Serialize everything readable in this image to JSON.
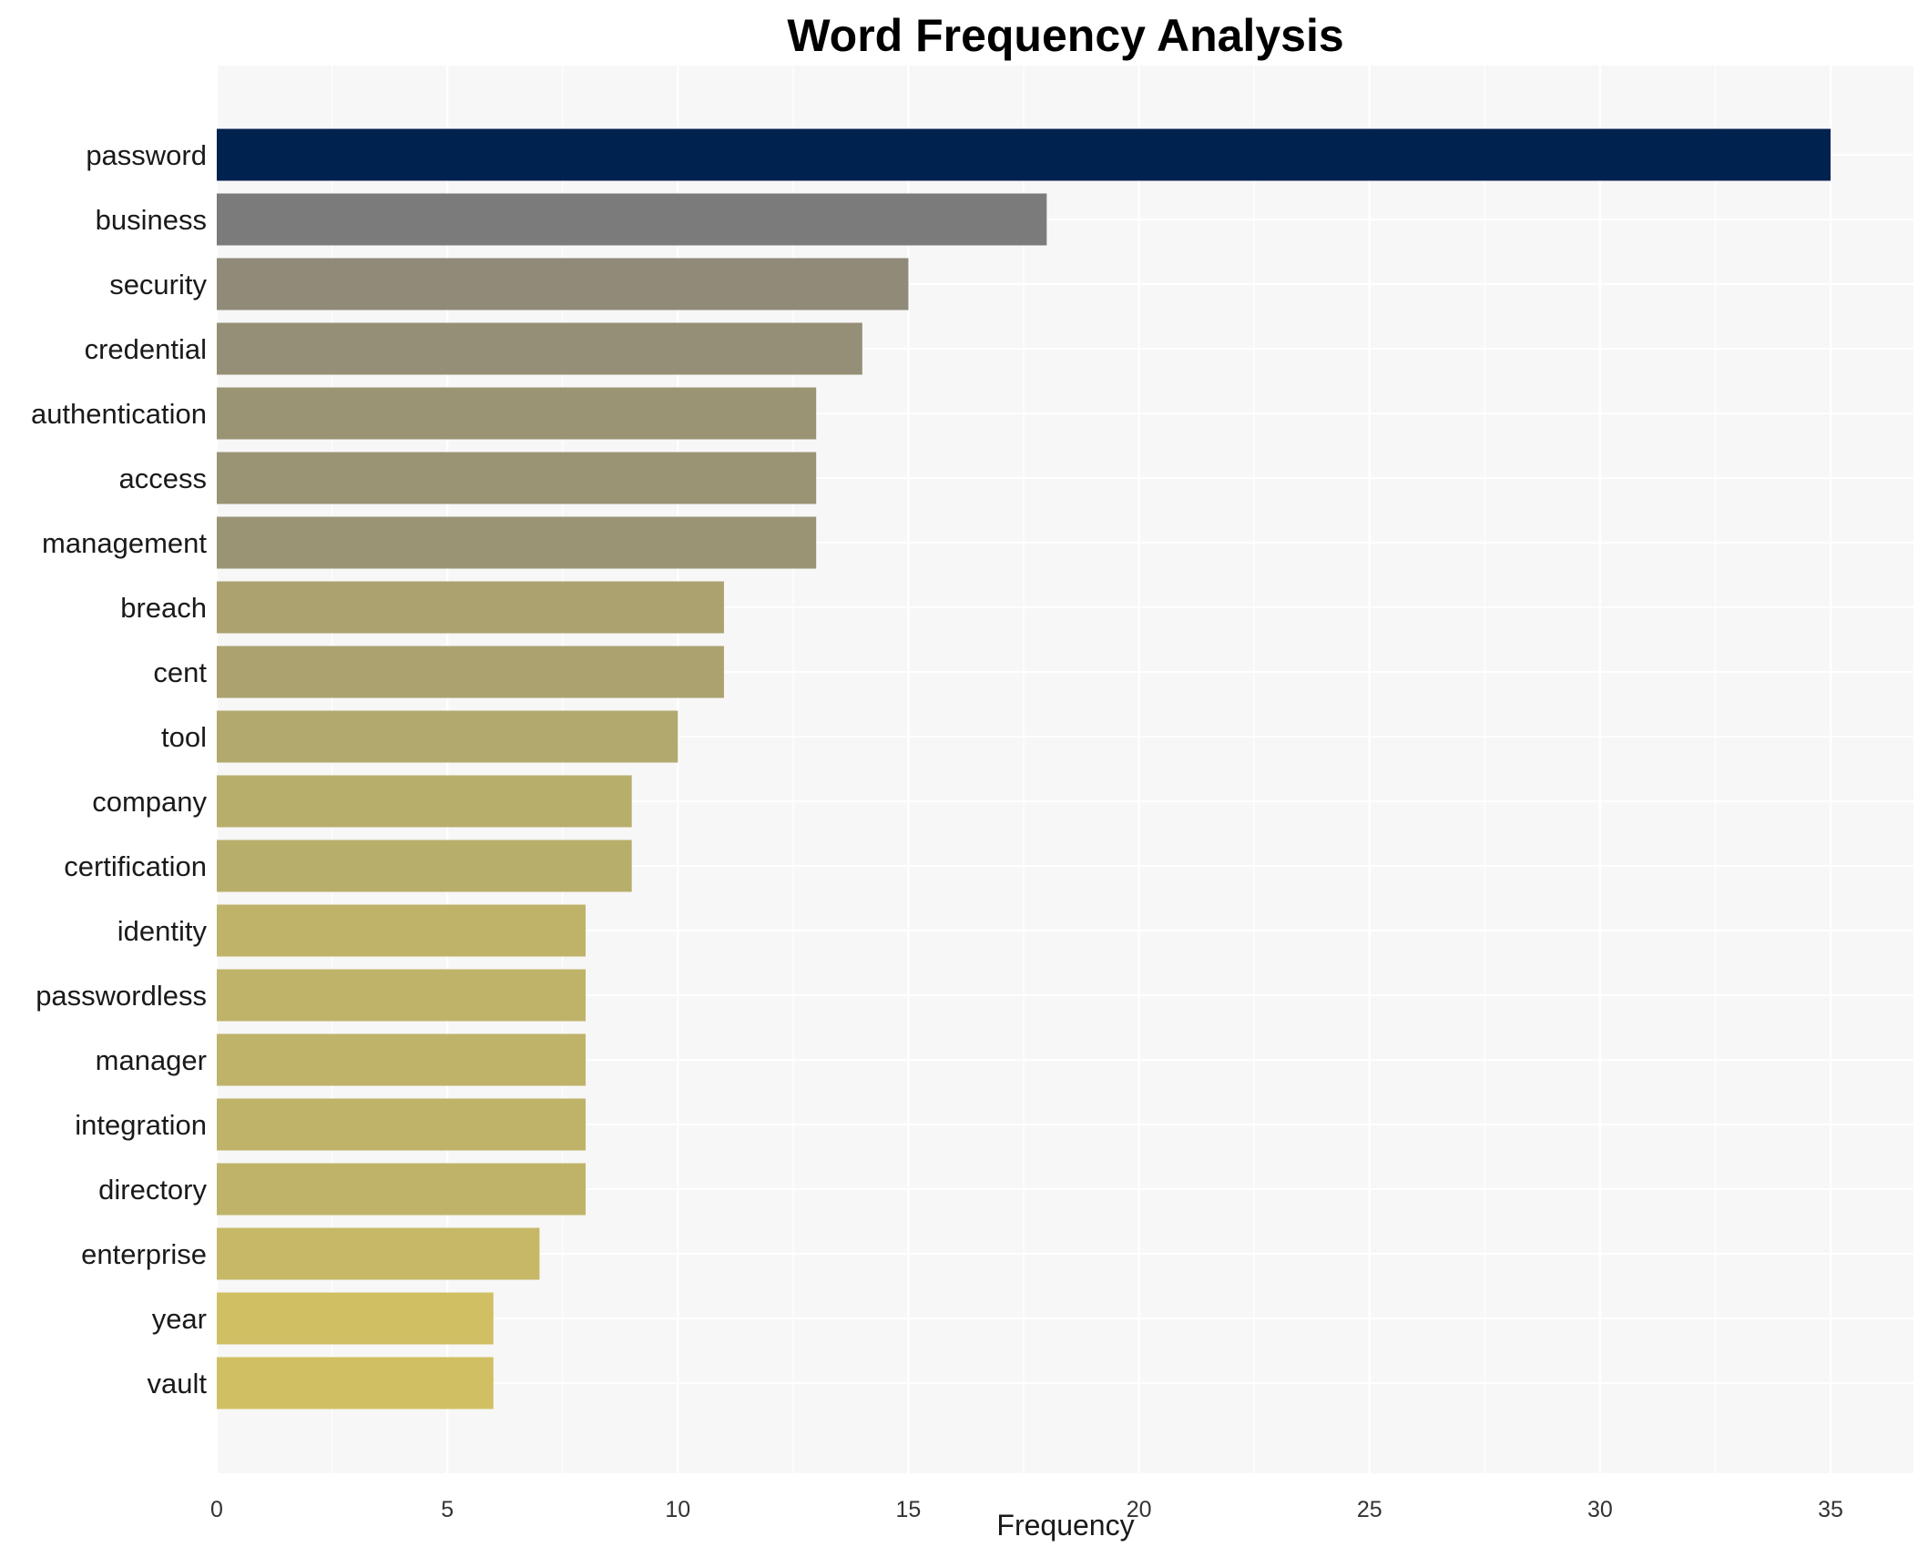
{
  "chart_data": {
    "type": "bar",
    "orientation": "horizontal",
    "title": "Word Frequency Analysis",
    "xlabel": "Frequency",
    "ylabel": "",
    "xlim": [
      0,
      36.5
    ],
    "xticks": [
      0,
      5,
      10,
      15,
      20,
      25,
      30,
      35
    ],
    "grid": true,
    "legend": "none",
    "categories": [
      "password",
      "business",
      "security",
      "credential",
      "authentication",
      "access",
      "management",
      "breach",
      "cent",
      "tool",
      "company",
      "certification",
      "identity",
      "passwordless",
      "manager",
      "integration",
      "directory",
      "enterprise",
      "year",
      "vault"
    ],
    "values": [
      35,
      18,
      15,
      14,
      13,
      13,
      13,
      11,
      11,
      10,
      9,
      9,
      8,
      8,
      8,
      8,
      8,
      7,
      6,
      6
    ],
    "colors": [
      "#00224e",
      "#7b7b7b",
      "#908a78",
      "#958f77",
      "#9a9475",
      "#9a9475",
      "#9a9475",
      "#aba270",
      "#aba270",
      "#b2a96f",
      "#b8ae6c",
      "#b8ae6c",
      "#bfb36a",
      "#bfb36a",
      "#bfb36a",
      "#bfb36a",
      "#bfb36a",
      "#c6b867",
      "#d0c063",
      "#d0c063"
    ],
    "background": "#f7f7f7"
  }
}
